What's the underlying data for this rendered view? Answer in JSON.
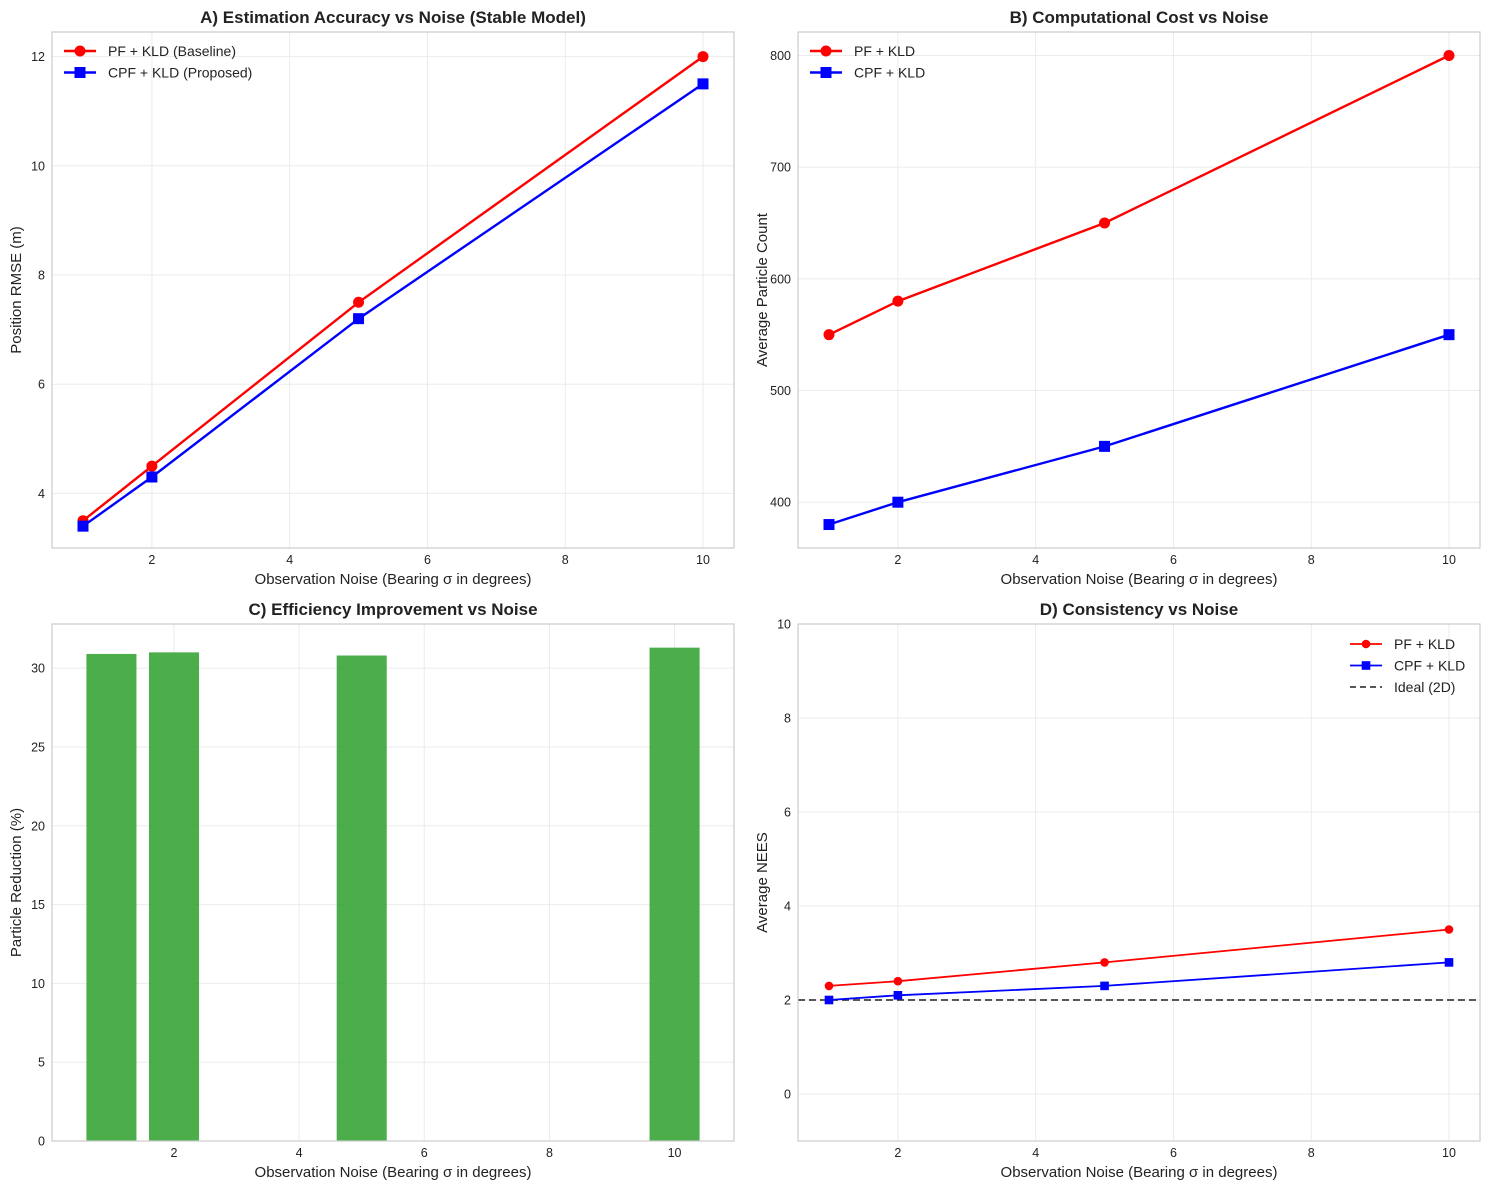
{
  "chart_data": [
    {
      "panel": "A",
      "type": "line",
      "title": "A) Estimation Accuracy vs Noise (Stable Model)",
      "xlabel": "Observation Noise (Bearing σ in degrees)",
      "ylabel": "Position RMSE (m)",
      "xlim": [
        0.55,
        10.45
      ],
      "ylim": [
        3.0,
        12.45
      ],
      "xticks": [
        2,
        4,
        6,
        8,
        10
      ],
      "xtick_labels": [
        "2",
        "4",
        "6",
        "8",
        "10"
      ],
      "yticks": [
        4,
        6,
        8,
        10,
        12
      ],
      "ytick_labels": [
        "4",
        "6",
        "8",
        "10",
        "12"
      ],
      "grid": true,
      "legend_position": "top-left",
      "x": [
        1,
        2,
        5,
        10
      ],
      "series": [
        {
          "name": "PF + KLD (Baseline)",
          "color": "#ff0000",
          "marker": "circle",
          "values": [
            3.5,
            4.5,
            7.5,
            12.0
          ]
        },
        {
          "name": "CPF + KLD (Proposed)",
          "color": "#0000ff",
          "marker": "square",
          "values": [
            3.4,
            4.3,
            7.2,
            11.5
          ]
        }
      ]
    },
    {
      "panel": "B",
      "type": "line",
      "title": "B) Computational Cost vs Noise",
      "xlabel": "Observation Noise (Bearing σ in degrees)",
      "ylabel": "Average Particle Count",
      "xlim": [
        0.55,
        10.45
      ],
      "ylim": [
        359,
        821
      ],
      "xticks": [
        2,
        4,
        6,
        8,
        10
      ],
      "xtick_labels": [
        "2",
        "4",
        "6",
        "8",
        "10"
      ],
      "yticks": [
        400,
        500,
        600,
        700,
        800
      ],
      "ytick_labels": [
        "400",
        "500",
        "600",
        "700",
        "800"
      ],
      "grid": true,
      "legend_position": "top-left",
      "x": [
        1,
        2,
        5,
        10
      ],
      "series": [
        {
          "name": "PF + KLD",
          "color": "#ff0000",
          "marker": "circle",
          "values": [
            550,
            580,
            650,
            800
          ]
        },
        {
          "name": "CPF + KLD",
          "color": "#0000ff",
          "marker": "square",
          "values": [
            380,
            400,
            450,
            550
          ]
        }
      ]
    },
    {
      "panel": "C",
      "type": "bar",
      "title": "C) Efficiency Improvement vs Noise",
      "xlabel": "Observation Noise (Bearing σ in degrees)",
      "ylabel": "Particle Reduction (%)",
      "xlim": [
        0.05,
        10.95
      ],
      "ylim": [
        0,
        32.8
      ],
      "xticks": [
        2,
        4,
        6,
        8,
        10
      ],
      "xtick_labels": [
        "2",
        "4",
        "6",
        "8",
        "10"
      ],
      "yticks": [
        0,
        5,
        10,
        15,
        20,
        25,
        30
      ],
      "ytick_labels": [
        "0",
        "5",
        "10",
        "15",
        "20",
        "25",
        "30"
      ],
      "grid": true,
      "bar_color": "#2ca02c",
      "bar_opacity": 0.85,
      "bar_width": 0.8,
      "x": [
        1,
        2,
        5,
        10
      ],
      "values": [
        30.9,
        31.0,
        30.8,
        31.3
      ]
    },
    {
      "panel": "D",
      "type": "line",
      "title": "D) Consistency vs Noise",
      "xlabel": "Observation Noise (Bearing σ in degrees)",
      "ylabel": "Average NEES",
      "xlim": [
        0.55,
        10.45
      ],
      "ylim": [
        -1,
        10
      ],
      "xticks": [
        2,
        4,
        6,
        8,
        10
      ],
      "xtick_labels": [
        "2",
        "4",
        "6",
        "8",
        "10"
      ],
      "yticks": [
        0,
        2,
        4,
        6,
        8,
        10
      ],
      "ytick_labels": [
        "0",
        "2",
        "4",
        "6",
        "8",
        "10"
      ],
      "grid": true,
      "legend_position": "top-right",
      "x": [
        1,
        2,
        5,
        10
      ],
      "series": [
        {
          "name": "PF + KLD",
          "color": "#ff0000",
          "marker": "circle",
          "values": [
            2.3,
            2.4,
            2.8,
            3.5
          ]
        },
        {
          "name": "CPF + KLD",
          "color": "#0000ff",
          "marker": "square",
          "values": [
            2.0,
            2.1,
            2.3,
            2.8
          ]
        }
      ],
      "reference_line": {
        "name": "Ideal (2D)",
        "value": 2,
        "color": "#404040",
        "style": "dashed"
      }
    }
  ]
}
